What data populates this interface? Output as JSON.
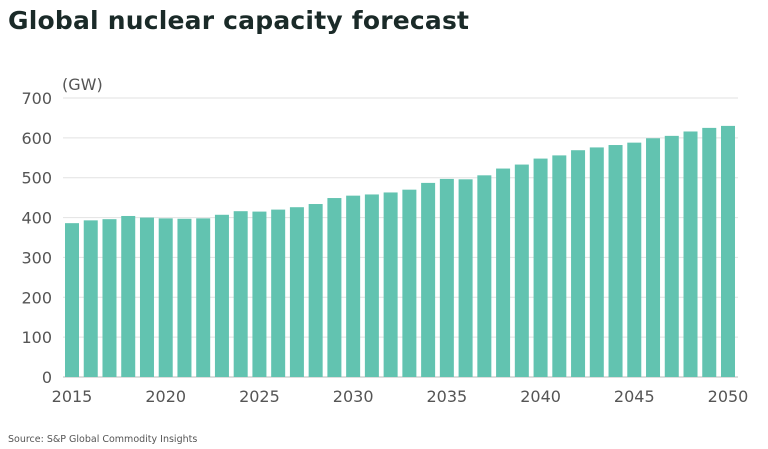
{
  "title": "Global nuclear capacity forecast",
  "source": "Source: S&P Global Commodity Insights",
  "chart_data": {
    "type": "bar",
    "title": "Global nuclear capacity forecast",
    "ylabel": "(GW)",
    "xlabel": "",
    "ylim": [
      0,
      700
    ],
    "yticks": [
      0,
      100,
      200,
      300,
      400,
      500,
      600,
      700
    ],
    "xtick_labels": [
      "2015",
      "2020",
      "2025",
      "2030",
      "2035",
      "2040",
      "2045",
      "2050"
    ],
    "grid": "horizontal",
    "bar_color": "#62c3b0",
    "categories": [
      2015,
      2016,
      2017,
      2018,
      2019,
      2020,
      2021,
      2022,
      2023,
      2024,
      2025,
      2026,
      2027,
      2028,
      2029,
      2030,
      2031,
      2032,
      2033,
      2034,
      2035,
      2036,
      2037,
      2038,
      2039,
      2040,
      2041,
      2042,
      2043,
      2044,
      2045,
      2046,
      2047,
      2048,
      2049,
      2050
    ],
    "values": [
      386,
      393,
      396,
      404,
      400,
      398,
      397,
      398,
      407,
      416,
      415,
      420,
      426,
      434,
      449,
      455,
      458,
      463,
      470,
      487,
      497,
      496,
      506,
      523,
      533,
      548,
      556,
      569,
      576,
      582,
      588,
      599,
      605,
      616,
      625,
      630
    ]
  }
}
